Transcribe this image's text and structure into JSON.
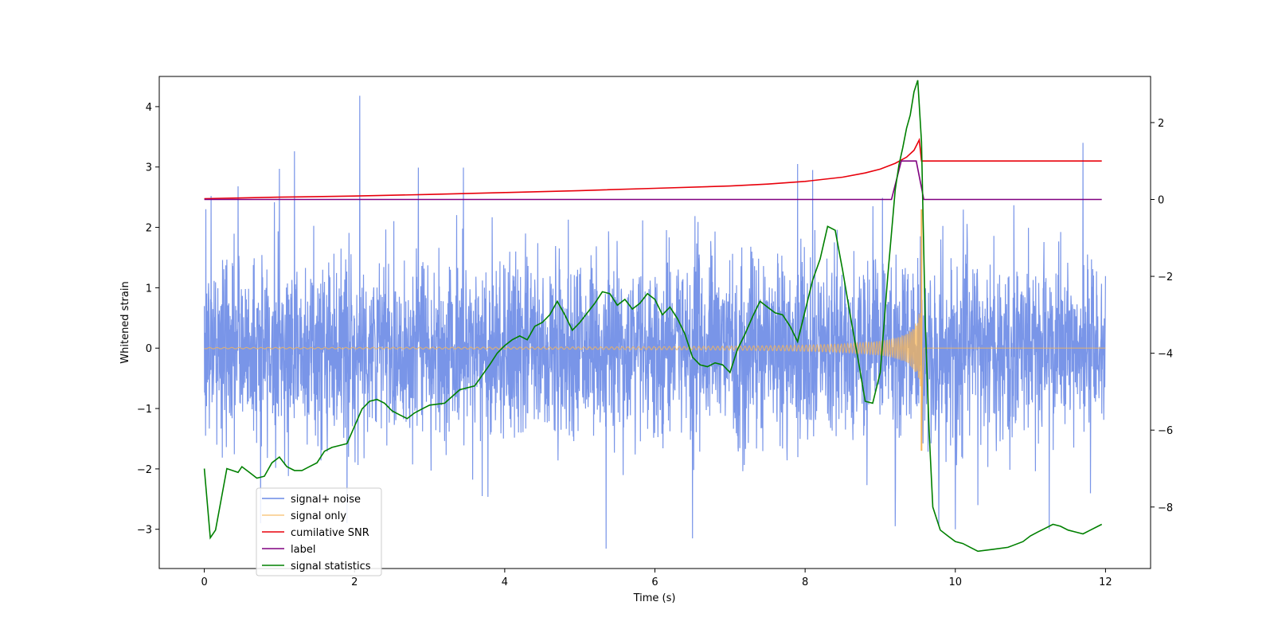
{
  "chart_data": {
    "type": "line",
    "title": "",
    "xlabel": "Time (s)",
    "ylabel": "Whitened strain",
    "y2label": "",
    "xlim": [
      -0.6,
      12.6
    ],
    "ylim": [
      -3.65,
      4.5
    ],
    "y2lim": [
      -9.6,
      3.2
    ],
    "xticks": [
      0,
      2,
      4,
      6,
      8,
      10,
      12
    ],
    "yticks": [
      -3,
      -2,
      -1,
      0,
      1,
      2,
      3,
      4
    ],
    "y2ticks": [
      -8,
      -6,
      -4,
      -2,
      0,
      2
    ],
    "legend_position": "lower-left",
    "series": [
      {
        "name": "signal+ noise",
        "axis": "left",
        "color": "#6a8ae6",
        "kind": "noise",
        "duration": 12.0,
        "sigma": 0.75,
        "extremes": [
          [
            0.02,
            2.3
          ],
          [
            0.09,
            2.52
          ],
          [
            0.45,
            2.68
          ],
          [
            1.0,
            2.97
          ],
          [
            1.2,
            3.26
          ],
          [
            2.07,
            4.18
          ],
          [
            2.85,
            2.99
          ],
          [
            3.45,
            2.99
          ],
          [
            7.9,
            3.05
          ],
          [
            8.1,
            2.95
          ],
          [
            11.7,
            3.4
          ],
          [
            0.75,
            -2.9
          ],
          [
            1.9,
            -2.9
          ],
          [
            5.35,
            -3.32
          ],
          [
            6.5,
            -3.15
          ],
          [
            9.2,
            -2.95
          ],
          [
            11.25,
            -3.0
          ],
          [
            3.7,
            -2.45
          ],
          [
            10.3,
            -2.6
          ]
        ]
      },
      {
        "name": "signal only",
        "axis": "left",
        "color": "#f5b55a",
        "kind": "chirp",
        "t_merge": 9.55,
        "peak": 2.3
      },
      {
        "name": "cumilative SNR",
        "axis": "right",
        "color": "#e8000b",
        "x": [
          0,
          1,
          2,
          3,
          4,
          5,
          6,
          7,
          7.5,
          8,
          8.5,
          8.8,
          9.0,
          9.2,
          9.35,
          9.45,
          9.52,
          9.55,
          10,
          11,
          11.95
        ],
        "y": [
          0.02,
          0.06,
          0.09,
          0.13,
          0.18,
          0.23,
          0.29,
          0.35,
          0.4,
          0.47,
          0.58,
          0.69,
          0.79,
          0.94,
          1.1,
          1.28,
          1.55,
          1.0,
          1.0,
          1.0,
          1.0
        ]
      },
      {
        "name": "label",
        "axis": "right",
        "color": "#800080",
        "x": [
          0,
          9.15,
          9.28,
          9.48,
          9.58,
          11.95
        ],
        "y": [
          0,
          0,
          1,
          1,
          0,
          0
        ]
      },
      {
        "name": "signal statistics",
        "axis": "right",
        "color": "#008000",
        "x": [
          0,
          0.08,
          0.15,
          0.3,
          0.45,
          0.5,
          0.6,
          0.7,
          0.8,
          0.9,
          1.0,
          1.1,
          1.2,
          1.3,
          1.4,
          1.5,
          1.6,
          1.7,
          1.8,
          1.9,
          2.0,
          2.1,
          2.2,
          2.3,
          2.4,
          2.5,
          2.6,
          2.7,
          2.8,
          2.9,
          3.0,
          3.2,
          3.4,
          3.6,
          3.8,
          3.9,
          4.0,
          4.1,
          4.2,
          4.3,
          4.4,
          4.5,
          4.6,
          4.7,
          4.8,
          4.9,
          5.0,
          5.1,
          5.2,
          5.3,
          5.4,
          5.5,
          5.6,
          5.7,
          5.8,
          5.9,
          6.0,
          6.1,
          6.2,
          6.3,
          6.4,
          6.5,
          6.6,
          6.7,
          6.8,
          6.9,
          7.0,
          7.1,
          7.2,
          7.3,
          7.4,
          7.5,
          7.6,
          7.7,
          7.8,
          7.9,
          8.0,
          8.1,
          8.2,
          8.3,
          8.4,
          8.5,
          8.6,
          8.7,
          8.8,
          8.9,
          9.0,
          9.1,
          9.2,
          9.25,
          9.3,
          9.35,
          9.4,
          9.45,
          9.5,
          9.55,
          9.6,
          9.65,
          9.7,
          9.8,
          9.9,
          10.0,
          10.1,
          10.2,
          10.3,
          10.5,
          10.7,
          10.9,
          11.0,
          11.1,
          11.2,
          11.3,
          11.4,
          11.5,
          11.6,
          11.7,
          11.8,
          11.9,
          11.95
        ],
        "y": [
          -7.0,
          -8.8,
          -8.6,
          -7.0,
          -7.1,
          -6.95,
          -7.1,
          -7.25,
          -7.2,
          -6.85,
          -6.7,
          -6.95,
          -7.05,
          -7.05,
          -6.95,
          -6.85,
          -6.55,
          -6.45,
          -6.4,
          -6.35,
          -5.9,
          -5.45,
          -5.25,
          -5.2,
          -5.3,
          -5.5,
          -5.6,
          -5.7,
          -5.55,
          -5.45,
          -5.35,
          -5.3,
          -4.95,
          -4.85,
          -4.3,
          -4.0,
          -3.8,
          -3.65,
          -3.55,
          -3.65,
          -3.3,
          -3.2,
          -3.0,
          -2.65,
          -3.0,
          -3.4,
          -3.2,
          -2.95,
          -2.7,
          -2.4,
          -2.45,
          -2.75,
          -2.6,
          -2.85,
          -2.7,
          -2.45,
          -2.6,
          -3.0,
          -2.8,
          -3.1,
          -3.5,
          -4.1,
          -4.3,
          -4.35,
          -4.25,
          -4.3,
          -4.5,
          -3.9,
          -3.5,
          -3.05,
          -2.65,
          -2.8,
          -2.95,
          -3.0,
          -3.3,
          -3.7,
          -2.9,
          -2.1,
          -1.55,
          -0.7,
          -0.8,
          -1.85,
          -3.0,
          -4.1,
          -5.25,
          -5.3,
          -4.5,
          -2.0,
          0.25,
          0.9,
          1.35,
          1.85,
          2.2,
          2.8,
          3.1,
          1.5,
          -3.2,
          -6.0,
          -8.0,
          -8.6,
          -8.75,
          -8.9,
          -8.95,
          -9.05,
          -9.15,
          -9.1,
          -9.05,
          -8.9,
          -8.75,
          -8.65,
          -8.55,
          -8.45,
          -8.5,
          -8.6,
          -8.65,
          -8.7,
          -8.6,
          -8.5,
          -8.45
        ]
      }
    ]
  }
}
